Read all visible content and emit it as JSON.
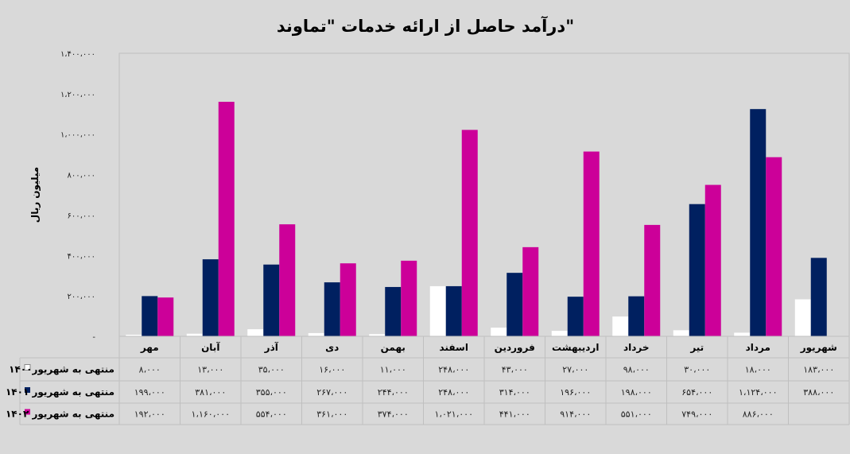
{
  "chart_data": {
    "type": "bar",
    "title": "درآمد حاصل از ارائه خدمات \"تماوند\"",
    "ylabel": "میلیون ریال",
    "ylim": [
      0,
      1400000
    ],
    "yticks": [
      0,
      200000,
      400000,
      600000,
      800000,
      1000000,
      1200000,
      1400000
    ],
    "ytick_labels": [
      "-",
      "۲۰۰،۰۰۰",
      "۴۰۰،۰۰۰",
      "۶۰۰،۰۰۰",
      "۸۰۰،۰۰۰",
      "۱،۰۰۰،۰۰۰",
      "۱،۲۰۰،۰۰۰",
      "۱،۴۰۰،۰۰۰"
    ],
    "categories": [
      "مهر",
      "آبان",
      "آذر",
      "دی",
      "بهمن",
      "اسفند",
      "فروردین",
      "اردیبهشت",
      "خرداد",
      "تیر",
      "مرداد",
      "شهریور"
    ],
    "legend_placement": "table-left",
    "grid": false,
    "series": [
      {
        "name": "منتهی به شهریور۱۴۰۰",
        "color": "#ffffff",
        "values": [
          8000,
          13000,
          35000,
          16000,
          11000,
          248000,
          43000,
          27000,
          98000,
          30000,
          18000,
          183000
        ],
        "labels": [
          "۸،۰۰۰",
          "۱۳،۰۰۰",
          "۳۵،۰۰۰",
          "۱۶،۰۰۰",
          "۱۱،۰۰۰",
          "۲۴۸،۰۰۰",
          "۴۳،۰۰۰",
          "۲۷،۰۰۰",
          "۹۸،۰۰۰",
          "۳۰،۰۰۰",
          "۱۸،۰۰۰",
          "۱۸۳،۰۰۰"
        ]
      },
      {
        "name": "منتهی به شهریور ۱۴۰۱",
        "color": "#002060",
        "values": [
          199000,
          381000,
          355000,
          267000,
          244000,
          248000,
          314000,
          196000,
          198000,
          654000,
          1124000,
          388000
        ],
        "labels": [
          "۱۹۹،۰۰۰",
          "۳۸۱،۰۰۰",
          "۳۵۵،۰۰۰",
          "۲۶۷،۰۰۰",
          "۲۴۴،۰۰۰",
          "۲۴۸،۰۰۰",
          "۳۱۴،۰۰۰",
          "۱۹۶،۰۰۰",
          "۱۹۸،۰۰۰",
          "۶۵۴،۰۰۰",
          "۱،۱۲۴،۰۰۰",
          "۳۸۸،۰۰۰"
        ]
      },
      {
        "name": "منتهی به شهریور ۱۴۰۲",
        "color": "#cc0099",
        "values": [
          192000,
          1160000,
          554000,
          361000,
          374000,
          1021000,
          441000,
          914000,
          551000,
          749000,
          886000,
          null
        ],
        "labels": [
          "۱۹۲،۰۰۰",
          "۱،۱۶۰،۰۰۰",
          "۵۵۴،۰۰۰",
          "۳۶۱،۰۰۰",
          "۳۷۴،۰۰۰",
          "۱،۰۲۱،۰۰۰",
          "۴۴۱،۰۰۰",
          "۹۱۴،۰۰۰",
          "۵۵۱،۰۰۰",
          "۷۴۹،۰۰۰",
          "۸۸۶،۰۰۰",
          ""
        ]
      }
    ]
  }
}
